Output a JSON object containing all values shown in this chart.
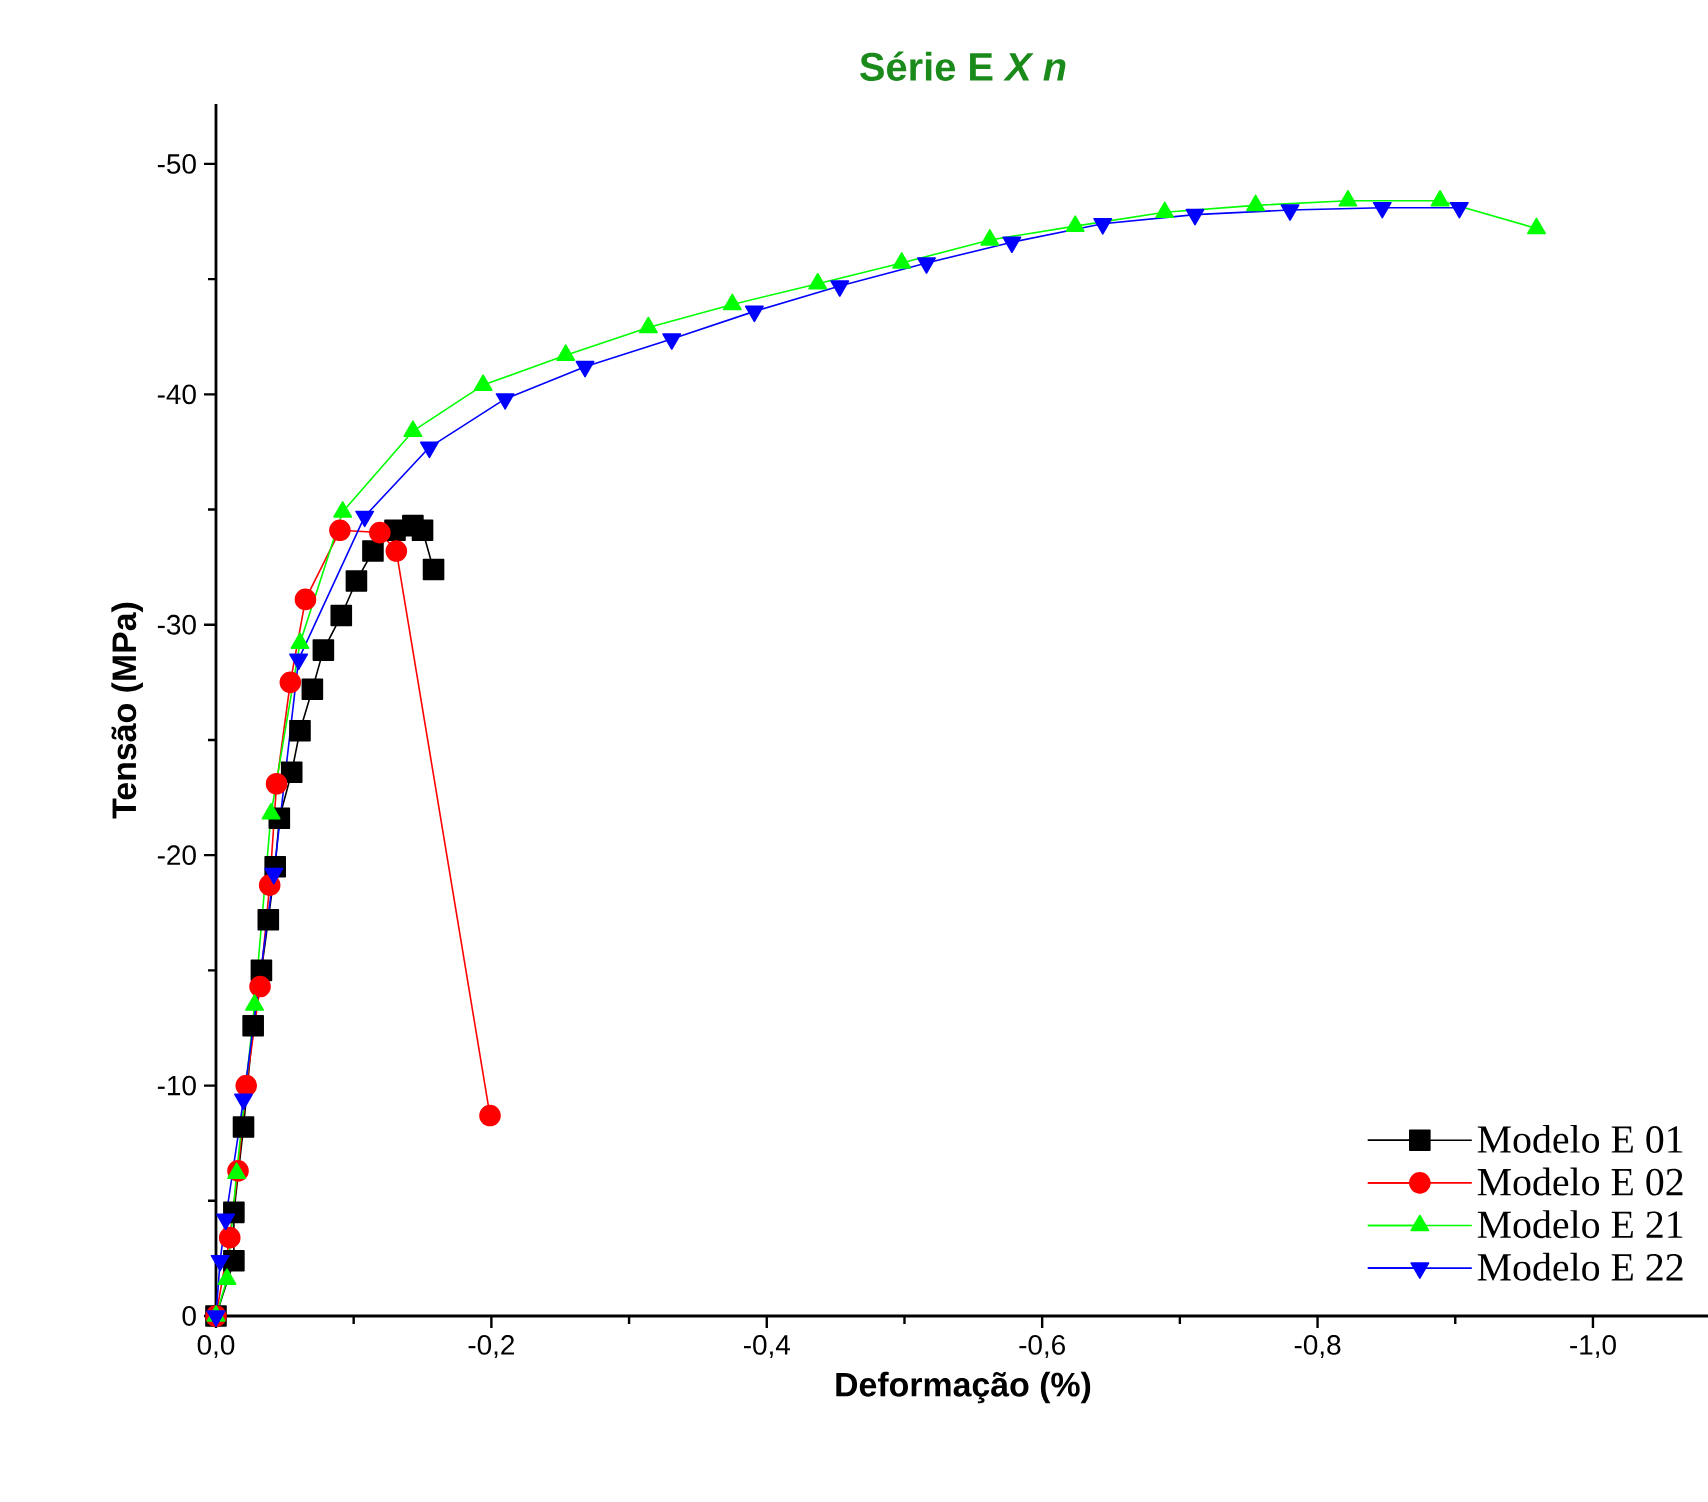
{
  "chart_data": {
    "type": "line",
    "title": "Série E *X n*",
    "xlabel": "Deformação (%)",
    "ylabel": "Tensão (MPa)",
    "xlim": [
      0,
      -1.085
    ],
    "ylim": [
      0,
      -52.6
    ],
    "xticks": [
      {
        "value": 0,
        "label": "0,0"
      },
      {
        "value": -0.2,
        "label": "-0,2"
      },
      {
        "value": -0.4,
        "label": "-0,4"
      },
      {
        "value": -0.6,
        "label": "-0,6"
      },
      {
        "value": -0.8,
        "label": "-0,8"
      },
      {
        "value": -1.0,
        "label": "-1,0"
      }
    ],
    "yticks": [
      0,
      -10,
      -20,
      -30,
      -40,
      -50
    ],
    "legend": "bottom right",
    "grid": false,
    "line_style": "solid",
    "series": [
      {
        "name": "Modelo E 01",
        "color": "#000000",
        "marker": "square",
        "x": [
          0,
          -0.013,
          -0.013,
          -0.02,
          -0.027,
          -0.033,
          -0.038,
          -0.043,
          -0.046,
          -0.055,
          -0.061,
          -0.07,
          -0.078,
          -0.091,
          -0.102,
          -0.114,
          -0.13,
          -0.143,
          -0.15,
          -0.158
        ],
        "values": [
          0,
          -2.4,
          -4.5,
          -8.2,
          -12.6,
          -15.0,
          -17.2,
          -19.5,
          -21.6,
          -23.6,
          -25.4,
          -27.2,
          -28.9,
          -30.4,
          -31.9,
          -33.2,
          -34.1,
          -34.3,
          -34.1,
          -32.4
        ]
      },
      {
        "name": "Modelo E 02",
        "color": "#ff0000",
        "marker": "circle",
        "x": [
          0,
          -0.01,
          -0.016,
          -0.022,
          -0.032,
          -0.039,
          -0.044,
          -0.054,
          -0.065,
          -0.09,
          -0.119,
          -0.131,
          -0.199
        ],
        "values": [
          0,
          -3.4,
          -6.3,
          -10.0,
          -14.3,
          -18.7,
          -23.1,
          -27.5,
          -31.1,
          -34.1,
          -34.0,
          -33.2,
          -8.7
        ]
      },
      {
        "name": "Modelo E 21",
        "color": "#00ff00",
        "marker": "triangle",
        "x": [
          0,
          -0.008,
          -0.015,
          -0.028,
          -0.04,
          -0.061,
          -0.092,
          -0.143,
          -0.194,
          -0.254,
          -0.314,
          -0.375,
          -0.437,
          -0.498,
          -0.562,
          -0.624,
          -0.689,
          -0.755,
          -0.822,
          -0.889,
          -0.959
        ],
        "values": [
          0,
          -1.6,
          -6.2,
          -13.5,
          -21.8,
          -29.2,
          -34.9,
          -38.4,
          -40.4,
          -41.7,
          -42.9,
          -43.9,
          -44.8,
          -45.7,
          -46.7,
          -47.3,
          -47.9,
          -48.2,
          -48.4,
          -48.4,
          -47.2
        ]
      },
      {
        "name": "Modelo E 22",
        "color": "#0000ff",
        "marker": "triangle down",
        "x": [
          0,
          -0.003,
          -0.007,
          -0.02,
          -0.042,
          -0.06,
          -0.108,
          -0.155,
          -0.21,
          -0.268,
          -0.331,
          -0.391,
          -0.453,
          -0.516,
          -0.578,
          -0.644,
          -0.711,
          -0.78,
          -0.847,
          -0.903
        ],
        "values": [
          0,
          -2.4,
          -4.2,
          -9.4,
          -19.2,
          -28.5,
          -34.7,
          -37.7,
          -39.8,
          -41.2,
          -42.4,
          -43.6,
          -44.7,
          -45.7,
          -46.6,
          -47.4,
          -47.8,
          -48.0,
          -48.1,
          -48.1
        ]
      }
    ]
  }
}
